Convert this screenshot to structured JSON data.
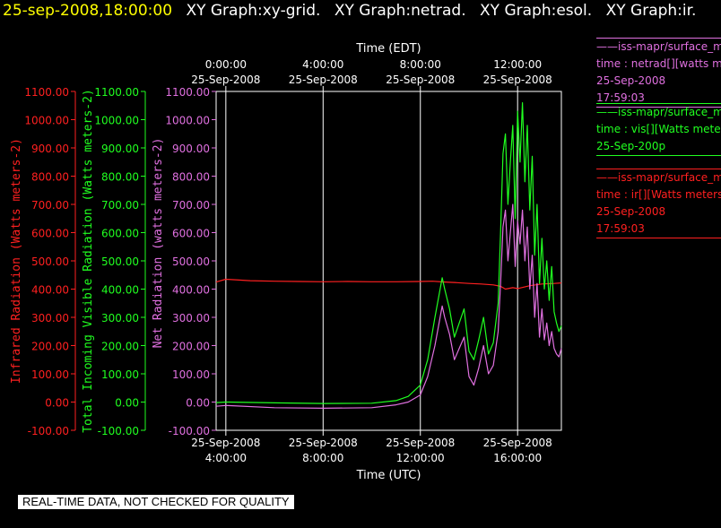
{
  "header": {
    "timestamp": "25-sep-2008,18:00:00",
    "graph_titles": [
      "XY Graph:xy-grid.",
      "XY Graph:netrad.",
      "XY Graph:esol.",
      "XY Graph:ir."
    ]
  },
  "notice": "REAL-TIME DATA, NOT CHECKED FOR QUALITY",
  "colors": {
    "ir": "#ff2020",
    "vis": "#20ff20",
    "net": "#e070e0",
    "grid": "#ffffff",
    "text": "#ffffff"
  },
  "legend": [
    {
      "lines": [
        "iss-mapr/surface_m",
        "time : netrad[][watts m",
        "25-Sep-2008",
        "17:59:03"
      ],
      "color": "#e070e0"
    },
    {
      "lines": [
        "iss-mapr/surface_m",
        "time : vis[][Watts mete",
        "25-Sep-200p"
      ],
      "color": "#20ff20"
    },
    {
      "lines": [
        "iss-mapr/surface_m",
        "time : ir[][Watts meters",
        "25-Sep-2008",
        "17:59:03"
      ],
      "color": "#ff2020"
    }
  ],
  "chart_data": {
    "type": "line",
    "ylim": [
      -100,
      1100
    ],
    "yticks": [
      "-100.00",
      "0.00",
      "100.00",
      "200.00",
      "300.00",
      "400.00",
      "500.00",
      "600.00",
      "700.00",
      "800.00",
      "900.00",
      "1000.00",
      "1100.00"
    ],
    "ylabels": {
      "ir": "Infrared Radiation (Watts meters-2)",
      "vis": "Total Incoming Visible Radiation (Watts meters-2)",
      "net": "Net Radiation (watts meters-2)"
    },
    "xlabel_bottom": "Time (UTC)",
    "xlabel_top": "Time (EDT)",
    "xlim_utc_hours": [
      3.6,
      17.8
    ],
    "xticks_utc_hours": [
      4,
      8,
      12,
      16
    ],
    "xtick_labels_bottom": [
      [
        "25-Sep-2008",
        "4:00:00"
      ],
      [
        "25-Sep-2008",
        "8:00:00"
      ],
      [
        "25-Sep-2008",
        "12:00:00"
      ],
      [
        "25-Sep-2008",
        "16:00:00"
      ]
    ],
    "xtick_labels_top": [
      [
        "0:00:00",
        "25-Sep-2008"
      ],
      [
        "4:00:00",
        "25-Sep-2008"
      ],
      [
        "8:00:00",
        "25-Sep-2008"
      ],
      [
        "12:00:00",
        "25-Sep-2008"
      ]
    ],
    "grid": true,
    "series": [
      {
        "key": "ir",
        "x": [
          3.6,
          4.0,
          5.0,
          6.0,
          7.0,
          8.0,
          9.0,
          10.0,
          11.0,
          12.0,
          12.5,
          13.0,
          13.5,
          14.0,
          14.5,
          15.0,
          15.3,
          15.5,
          15.8,
          16.0,
          16.5,
          17.0,
          17.5,
          17.8
        ],
        "y": [
          425,
          435,
          430,
          428,
          427,
          426,
          427,
          426,
          426,
          427,
          428,
          425,
          423,
          420,
          418,
          415,
          410,
          400,
          405,
          402,
          412,
          418,
          420,
          422
        ]
      },
      {
        "key": "vis",
        "x": [
          3.6,
          4.0,
          6.0,
          8.0,
          10.0,
          11.0,
          11.5,
          12.0,
          12.3,
          12.6,
          12.9,
          13.0,
          13.2,
          13.4,
          13.6,
          13.8,
          14.0,
          14.2,
          14.4,
          14.6,
          14.8,
          15.0,
          15.2,
          15.3,
          15.4,
          15.5,
          15.6,
          15.7,
          15.8,
          15.9,
          16.0,
          16.1,
          16.2,
          16.3,
          16.4,
          16.5,
          16.6,
          16.7,
          16.8,
          16.9,
          17.0,
          17.1,
          17.2,
          17.3,
          17.4,
          17.5,
          17.6,
          17.7,
          17.8
        ],
        "y": [
          -2,
          0,
          -3,
          -5,
          -4,
          5,
          20,
          60,
          150,
          300,
          440,
          400,
          330,
          230,
          280,
          330,
          180,
          150,
          220,
          300,
          170,
          210,
          350,
          600,
          880,
          950,
          700,
          850,
          980,
          650,
          1030,
          850,
          1060,
          780,
          980,
          680,
          870,
          520,
          700,
          420,
          580,
          400,
          500,
          360,
          480,
          320,
          280,
          250,
          270
        ]
      },
      {
        "key": "net",
        "x": [
          3.6,
          4.0,
          6.0,
          8.0,
          10.0,
          11.0,
          11.5,
          12.0,
          12.3,
          12.6,
          12.9,
          13.0,
          13.2,
          13.4,
          13.6,
          13.8,
          14.0,
          14.2,
          14.4,
          14.6,
          14.8,
          15.0,
          15.2,
          15.3,
          15.4,
          15.5,
          15.6,
          15.7,
          15.8,
          15.9,
          16.0,
          16.1,
          16.2,
          16.3,
          16.4,
          16.5,
          16.6,
          16.7,
          16.8,
          16.9,
          17.0,
          17.1,
          17.2,
          17.3,
          17.4,
          17.5,
          17.6,
          17.7,
          17.8
        ],
        "y": [
          -15,
          -12,
          -20,
          -22,
          -20,
          -10,
          0,
          25,
          90,
          200,
          340,
          300,
          240,
          150,
          190,
          230,
          90,
          60,
          120,
          200,
          100,
          130,
          250,
          420,
          620,
          680,
          500,
          600,
          700,
          480,
          640,
          560,
          680,
          500,
          620,
          400,
          520,
          300,
          420,
          230,
          330,
          220,
          280,
          200,
          250,
          190,
          170,
          160,
          190
        ]
      }
    ]
  }
}
